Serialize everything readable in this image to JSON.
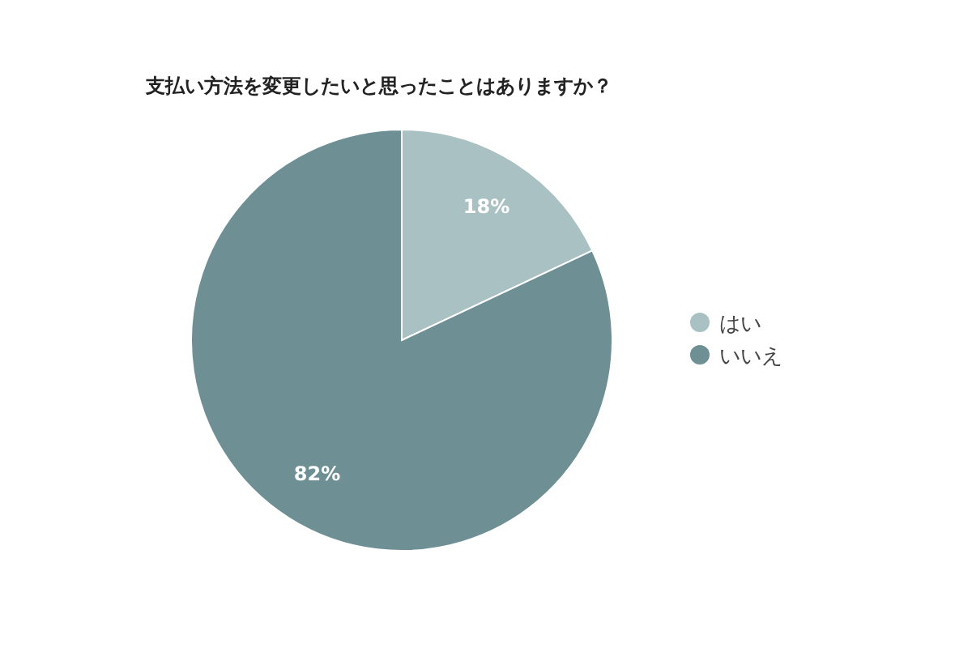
{
  "chart_data": {
    "type": "pie",
    "title": "支払い方法を変更したいと思ったことはありますか？",
    "categories": [
      "はい",
      "いいえ"
    ],
    "values": [
      18,
      82
    ],
    "colors": [
      "#a9c1c2",
      "#6e9095"
    ],
    "value_labels": [
      "18%",
      "82%"
    ],
    "legend": "right"
  }
}
